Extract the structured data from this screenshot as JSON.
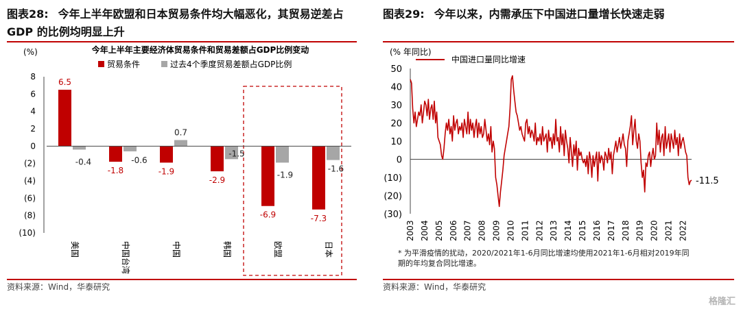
{
  "left": {
    "fig_label": "图表28:",
    "fig_title": "今年上半年欧盟和日本贸易条件均大幅恶化，其贸易逆差占GDP 的比例均明显上升",
    "source": "资料来源：Wind，华泰研究"
  },
  "right": {
    "fig_label": "图表29:",
    "fig_title": "今年以来，内需承压下中国进口量增长快速走弱",
    "source": "资料来源：Wind，华泰研究",
    "note_line1": "* 为平滑疫情的扰动，2020/2021年1-6月同比增速均使用2021年1-6月相对2019年同",
    "note_line2": "期的年均复合同比增速。"
  },
  "watermark": "格隆汇",
  "chart_data": [
    {
      "type": "bar",
      "title": "今年上半年主要经济体贸易条件和贸易差额占GDP比例变动",
      "unit_label": "(%)",
      "categories": [
        "美国",
        "中国台湾",
        "中国",
        "韩国",
        "欧盟",
        "日本"
      ],
      "series": [
        {
          "name": "贸易条件",
          "color": "#c00000",
          "values": [
            6.5,
            -1.8,
            -1.9,
            -2.9,
            -6.9,
            -7.3
          ],
          "labels": [
            "6.5",
            "-1.8",
            "-1.9",
            "-2.9",
            "-6.9",
            "-7.3"
          ]
        },
        {
          "name": "过去4个季度贸易差额占GDP比例",
          "color": "#a6a6a6",
          "values": [
            -0.4,
            -0.6,
            0.7,
            -1.5,
            -1.9,
            -1.6
          ],
          "labels": [
            "-0.4",
            "-0.6",
            "0.7",
            "-1.5",
            "-1.9",
            "-1.6"
          ]
        }
      ],
      "ylim": [
        -10,
        8
      ],
      "yticks": [
        8,
        6,
        4,
        2,
        0,
        -2,
        -4,
        -6,
        -8,
        -10
      ],
      "ytick_labels": [
        "8",
        "6",
        "4",
        "2",
        "0",
        "(2)",
        "(4)",
        "(6)",
        "(8)",
        "(10)"
      ],
      "highlight": [
        "欧盟",
        "日本"
      ],
      "legend_position": "top"
    },
    {
      "type": "line",
      "title": "",
      "unit_label": "(% 年同比)",
      "series_name": "中国进口量同比增速",
      "color": "#c00000",
      "ylim": [
        -30,
        50
      ],
      "yticks": [
        50,
        40,
        30,
        20,
        10,
        0,
        -10,
        -20,
        -30
      ],
      "ytick_labels": [
        "50",
        "40",
        "30",
        "20",
        "10",
        "0",
        "(10)",
        "(20)",
        "(30)"
      ],
      "xticks": [
        "2003",
        "2004",
        "2005",
        "2006",
        "2007",
        "2008",
        "2009",
        "2010",
        "2011",
        "2012",
        "2013",
        "2014",
        "2015",
        "2016",
        "2017",
        "2018",
        "2019",
        "2020",
        "2021",
        "2022"
      ],
      "last_value_label": "-11.5",
      "legend_position": "top-left",
      "x_start": 2003.0,
      "x_end": 2022.6,
      "values": [
        44,
        42,
        28,
        20,
        26,
        18,
        22,
        26,
        24,
        30,
        20,
        26,
        32,
        30,
        24,
        33,
        22,
        28,
        30,
        22,
        32,
        20,
        26,
        12,
        10,
        8,
        2,
        0,
        6,
        14,
        20,
        16,
        22,
        14,
        18,
        10,
        24,
        16,
        20,
        22,
        14,
        18,
        16,
        20,
        12,
        22,
        18,
        14,
        26,
        14,
        22,
        16,
        20,
        12,
        18,
        22,
        12,
        20,
        14,
        18,
        12,
        14,
        22,
        16,
        10,
        14,
        8,
        18,
        4,
        10,
        6,
        -10,
        -14,
        -20,
        -26,
        -18,
        -12,
        -6,
        2,
        6,
        10,
        14,
        18,
        28,
        44,
        46,
        38,
        32,
        26,
        24,
        20,
        16,
        18,
        14,
        12,
        10,
        20,
        22,
        14,
        18,
        12,
        16,
        14,
        10,
        20,
        8,
        12,
        10,
        14,
        8,
        18,
        10,
        12,
        14,
        4,
        16,
        10,
        12,
        6,
        14,
        8,
        22,
        10,
        12,
        4,
        18,
        8,
        14,
        2,
        16,
        10,
        6,
        -2,
        12,
        4,
        -4,
        8,
        2,
        10,
        -6,
        6,
        2,
        4,
        0,
        -2,
        0,
        -4,
        2,
        -8,
        4,
        0,
        -10,
        2,
        -4,
        0,
        4,
        -12,
        4,
        -2,
        2,
        0,
        -6,
        4,
        2,
        -2,
        6,
        0,
        4,
        -8,
        2,
        6,
        10,
        4,
        8,
        12,
        6,
        10,
        14,
        8,
        6,
        -4,
        10,
        14,
        18,
        24,
        8,
        16,
        22,
        10,
        6,
        14,
        10,
        -2,
        -10,
        -6,
        -18,
        -2,
        -4,
        2,
        4,
        -4,
        2,
        6,
        0,
        2,
        20,
        8,
        16,
        4,
        12,
        14,
        2,
        18,
        6,
        10,
        14,
        4,
        14,
        10,
        6,
        16,
        8,
        12,
        2,
        14,
        6,
        10,
        12,
        8,
        4,
        2,
        -10,
        -14,
        -12,
        -11.5
      ]
    }
  ]
}
